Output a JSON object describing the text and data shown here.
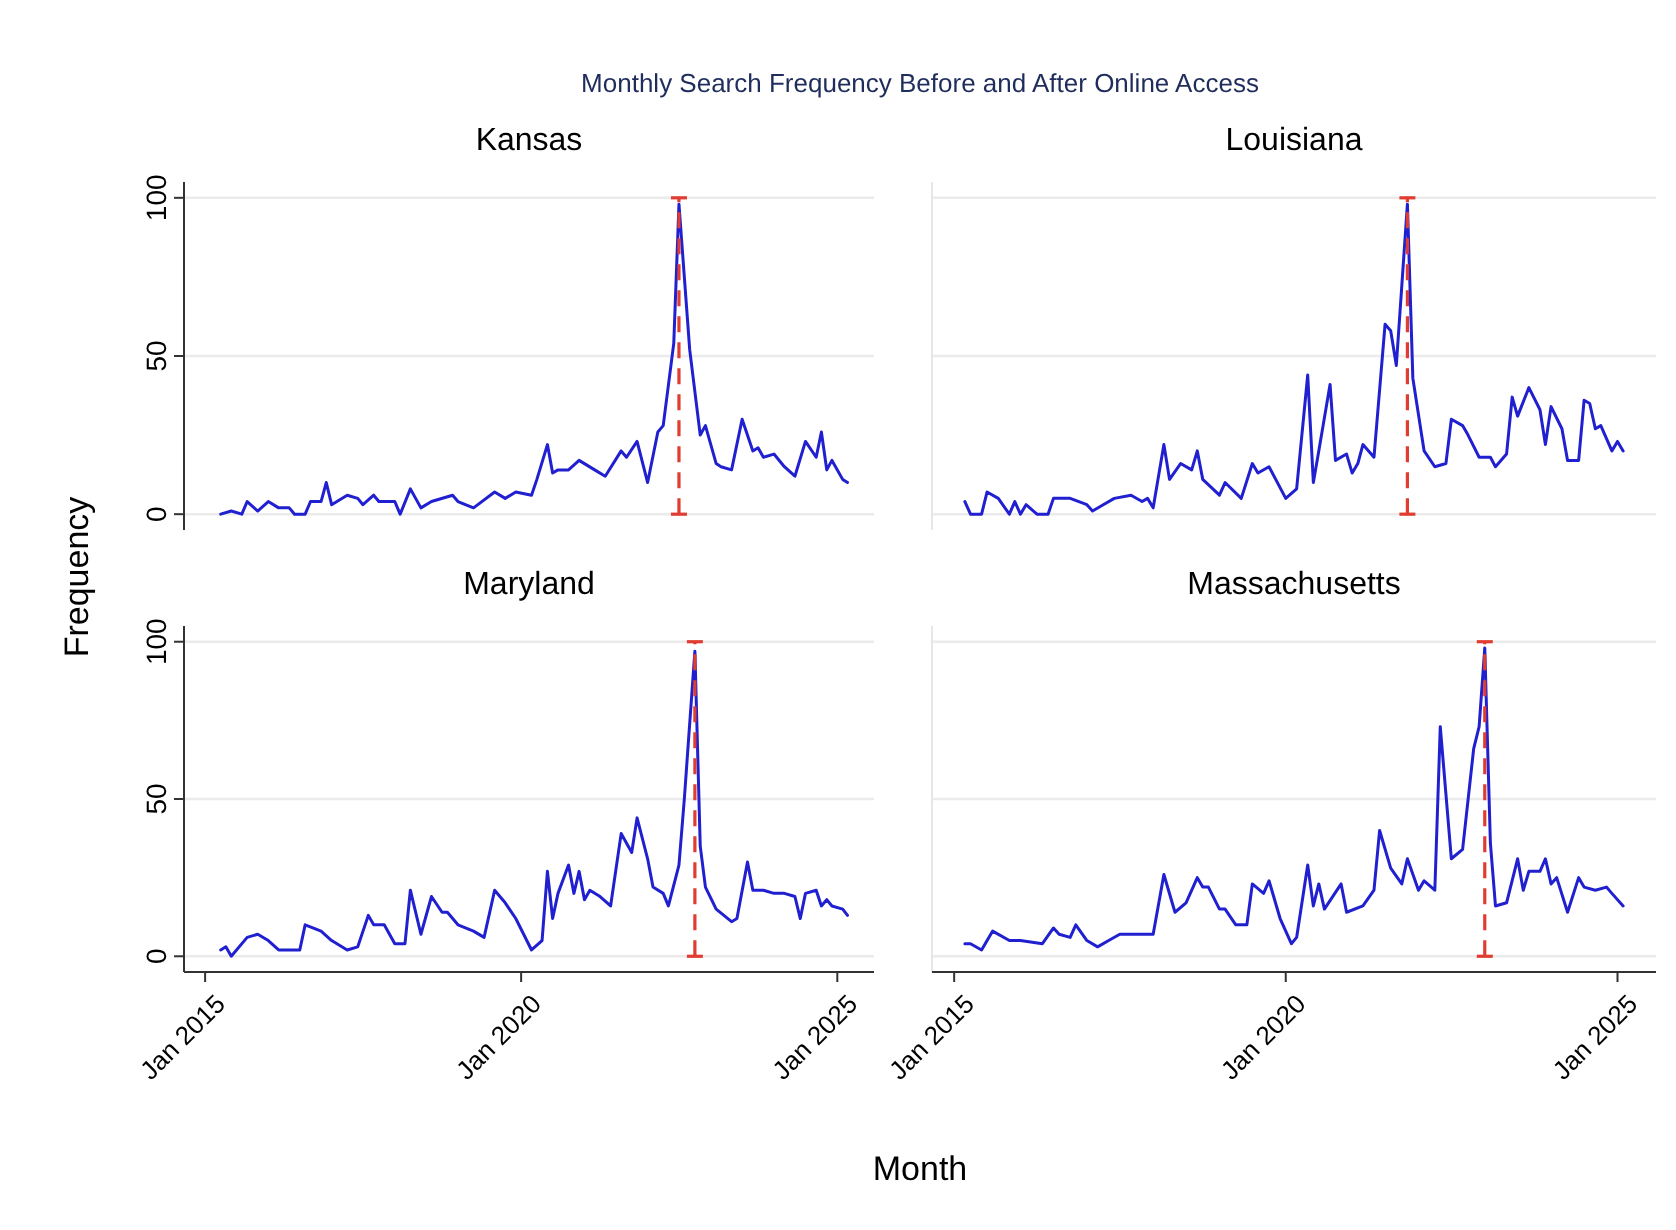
{
  "chart_data": [
    {
      "type": "line",
      "title": "Kansas",
      "ylabel": "Frequency",
      "annotations": [
        "Monthly Search Frequency Before and After Online Access"
      ],
      "xlim": [
        "2014-09",
        "2025-08"
      ],
      "ylim": [
        -5,
        105
      ],
      "yticks": [
        0,
        50,
        100
      ],
      "grid": "y",
      "tick_labels": "y",
      "line_style": "solid",
      "series": [
        {
          "color": "#2020d0",
          "x": [
            "2015-04",
            "2015-06",
            "2015-08",
            "2015-09",
            "2015-11",
            "2016-01",
            "2016-03",
            "2016-05",
            "2016-06",
            "2016-08",
            "2016-09",
            "2016-11",
            "2016-12",
            "2017-01",
            "2017-04",
            "2017-06",
            "2017-07",
            "2017-09",
            "2017-10",
            "2018-01",
            "2018-02",
            "2018-04",
            "2018-06",
            "2018-08",
            "2018-12",
            "2019-01",
            "2019-04",
            "2019-08",
            "2019-10",
            "2019-12",
            "2020-03",
            "2020-04",
            "2020-06",
            "2020-07",
            "2020-08",
            "2020-10",
            "2020-12",
            "2021-03",
            "2021-05",
            "2021-08",
            "2021-09",
            "2021-11",
            "2022-01",
            "2022-03",
            "2022-04",
            "2022-06",
            "2022-07",
            "2022-09",
            "2022-11",
            "2022-12",
            "2023-02",
            "2023-03",
            "2023-05",
            "2023-07",
            "2023-09",
            "2023-10",
            "2023-11",
            "2024-01",
            "2024-03",
            "2024-05",
            "2024-07",
            "2024-09",
            "2024-10",
            "2024-11",
            "2024-12",
            "2025-02",
            "2025-03"
          ],
          "values": [
            0,
            1,
            0,
            4,
            1,
            4,
            2,
            2,
            0,
            0,
            4,
            4,
            10,
            3,
            6,
            5,
            3,
            6,
            4,
            4,
            0,
            8,
            2,
            4,
            6,
            4,
            2,
            7,
            5,
            7,
            6,
            11,
            22,
            13,
            14,
            14,
            17,
            14,
            12,
            20,
            18,
            23,
            10,
            26,
            28,
            54,
            98,
            52,
            25,
            28,
            16,
            15,
            14,
            30,
            20,
            21,
            18,
            19,
            15,
            12,
            23,
            18,
            26,
            14,
            17,
            11,
            10
          ]
        }
      ],
      "ref_lines": [
        {
          "axis": "x",
          "value": "2022-07",
          "color": "#e03c31",
          "line_style": "dashed"
        }
      ]
    },
    {
      "type": "line",
      "title": "Louisiana",
      "xlim": [
        "2014-09",
        "2025-08"
      ],
      "ylim": [
        -5,
        105
      ],
      "yticks": [
        0,
        50,
        100
      ],
      "grid": "y",
      "tick_labels": false,
      "line_style": "solid",
      "series": [
        {
          "color": "#2020d0",
          "x": [
            "2015-03",
            "2015-04",
            "2015-06",
            "2015-07",
            "2015-09",
            "2015-11",
            "2015-12",
            "2016-01",
            "2016-02",
            "2016-04",
            "2016-06",
            "2016-07",
            "2016-10",
            "2017-01",
            "2017-02",
            "2017-04",
            "2017-06",
            "2017-09",
            "2017-11",
            "2017-12",
            "2018-01",
            "2018-03",
            "2018-04",
            "2018-06",
            "2018-08",
            "2018-09",
            "2018-10",
            "2019-01",
            "2019-02",
            "2019-05",
            "2019-07",
            "2019-08",
            "2019-10",
            "2020-01",
            "2020-03",
            "2020-05",
            "2020-06",
            "2020-07",
            "2020-09",
            "2020-10",
            "2020-12",
            "2021-01",
            "2021-02",
            "2021-03",
            "2021-05",
            "2021-07",
            "2021-08",
            "2021-09",
            "2021-11",
            "2021-12",
            "2022-02",
            "2022-04",
            "2022-06",
            "2022-07",
            "2022-09",
            "2022-10",
            "2022-12",
            "2023-02",
            "2023-03",
            "2023-05",
            "2023-06",
            "2023-07",
            "2023-09",
            "2023-11",
            "2023-12",
            "2024-01",
            "2024-03",
            "2024-04",
            "2024-06",
            "2024-07",
            "2024-08",
            "2024-09",
            "2024-10",
            "2024-12",
            "2025-01",
            "2025-02"
          ],
          "values": [
            4,
            0,
            0,
            7,
            5,
            0,
            4,
            0,
            3,
            0,
            0,
            5,
            5,
            3,
            1,
            3,
            5,
            6,
            4,
            5,
            2,
            22,
            11,
            16,
            14,
            20,
            11,
            6,
            10,
            5,
            16,
            13,
            15,
            5,
            8,
            44,
            10,
            20,
            41,
            17,
            19,
            13,
            16,
            22,
            18,
            60,
            58,
            47,
            98,
            43,
            20,
            15,
            16,
            30,
            28,
            25,
            18,
            18,
            15,
            19,
            37,
            31,
            40,
            33,
            22,
            34,
            27,
            17,
            17,
            36,
            35,
            27,
            28,
            20,
            23,
            20
          ]
        }
      ],
      "ref_lines": [
        {
          "axis": "x",
          "value": "2021-11",
          "color": "#e03c31",
          "line_style": "dashed"
        }
      ]
    },
    {
      "type": "line",
      "title": "Maryland",
      "xlabel": "Month",
      "xlim": [
        "2014-09",
        "2025-08"
      ],
      "xticks": [
        {
          "value": "2015-01",
          "label": "Jan 2015"
        },
        {
          "value": "2020-01",
          "label": "Jan 2020"
        },
        {
          "value": "2025-01",
          "label": "Jan 2025"
        }
      ],
      "ylim": [
        -5,
        105
      ],
      "yticks": [
        0,
        50,
        100
      ],
      "grid": "y",
      "line_style": "solid",
      "series": [
        {
          "color": "#2020d0",
          "x": [
            "2015-04",
            "2015-05",
            "2015-06",
            "2015-09",
            "2015-11",
            "2016-01",
            "2016-03",
            "2016-07",
            "2016-08",
            "2016-11",
            "2017-01",
            "2017-04",
            "2017-06",
            "2017-08",
            "2017-09",
            "2017-11",
            "2018-01",
            "2018-03",
            "2018-04",
            "2018-06",
            "2018-08",
            "2018-10",
            "2018-11",
            "2019-01",
            "2019-04",
            "2019-06",
            "2019-08",
            "2019-10",
            "2019-12",
            "2020-03",
            "2020-05",
            "2020-06",
            "2020-07",
            "2020-08",
            "2020-10",
            "2020-11",
            "2020-12",
            "2021-01",
            "2021-02",
            "2021-04",
            "2021-06",
            "2021-08",
            "2021-10",
            "2021-11",
            "2022-01",
            "2022-02",
            "2022-04",
            "2022-05",
            "2022-07",
            "2022-08",
            "2022-10",
            "2022-11",
            "2022-12",
            "2023-02",
            "2023-05",
            "2023-06",
            "2023-08",
            "2023-09",
            "2023-10",
            "2023-11",
            "2024-01",
            "2024-03",
            "2024-05",
            "2024-06",
            "2024-07",
            "2024-09",
            "2024-10",
            "2024-11",
            "2024-12",
            "2025-02",
            "2025-03"
          ],
          "values": [
            2,
            3,
            0,
            6,
            7,
            5,
            2,
            2,
            10,
            8,
            5,
            2,
            3,
            13,
            10,
            10,
            4,
            4,
            21,
            7,
            19,
            14,
            14,
            10,
            8,
            6,
            21,
            17,
            12,
            2,
            5,
            27,
            12,
            20,
            29,
            20,
            27,
            18,
            21,
            19,
            16,
            39,
            33,
            44,
            31,
            22,
            20,
            16,
            29,
            50,
            97,
            35,
            22,
            15,
            11,
            12,
            30,
            21,
            21,
            21,
            20,
            20,
            19,
            12,
            20,
            21,
            16,
            18,
            16,
            15,
            13
          ]
        }
      ],
      "ref_lines": [
        {
          "axis": "x",
          "value": "2022-10",
          "color": "#e03c31",
          "line_style": "dashed"
        }
      ]
    },
    {
      "type": "line",
      "title": "Massachusetts",
      "xlim": [
        "2014-09",
        "2025-08"
      ],
      "xticks": [
        {
          "value": "2015-01",
          "label": "Jan 2015"
        },
        {
          "value": "2020-01",
          "label": "Jan 2020"
        },
        {
          "value": "2025-01",
          "label": "Jan 2025"
        }
      ],
      "ylim": [
        -5,
        105
      ],
      "yticks": [
        0,
        50,
        100
      ],
      "grid": "y",
      "tick_labels": "x",
      "line_style": "solid",
      "series": [
        {
          "color": "#2020d0",
          "x": [
            "2015-03",
            "2015-04",
            "2015-06",
            "2015-08",
            "2015-11",
            "2016-01",
            "2016-05",
            "2016-07",
            "2016-08",
            "2016-10",
            "2016-11",
            "2017-01",
            "2017-03",
            "2017-05",
            "2017-07",
            "2017-09",
            "2018-01",
            "2018-03",
            "2018-05",
            "2018-07",
            "2018-09",
            "2018-10",
            "2018-11",
            "2019-01",
            "2019-02",
            "2019-04",
            "2019-06",
            "2019-07",
            "2019-09",
            "2019-10",
            "2019-12",
            "2020-02",
            "2020-03",
            "2020-05",
            "2020-06",
            "2020-07",
            "2020-08",
            "2020-11",
            "2020-12",
            "2021-03",
            "2021-05",
            "2021-06",
            "2021-08",
            "2021-10",
            "2021-11",
            "2022-01",
            "2022-02",
            "2022-04",
            "2022-05",
            "2022-07",
            "2022-09",
            "2022-11",
            "2022-12",
            "2023-01",
            "2023-02",
            "2023-03",
            "2023-05",
            "2023-07",
            "2023-08",
            "2023-09",
            "2023-11",
            "2023-12",
            "2024-01",
            "2024-02",
            "2024-04",
            "2024-06",
            "2024-07",
            "2024-09",
            "2024-11",
            "2024-12",
            "2025-02"
          ],
          "values": [
            4,
            4,
            2,
            8,
            5,
            5,
            4,
            9,
            7,
            6,
            10,
            5,
            3,
            5,
            7,
            7,
            7,
            26,
            14,
            17,
            25,
            22,
            22,
            15,
            15,
            10,
            10,
            23,
            20,
            24,
            12,
            4,
            6,
            29,
            16,
            23,
            15,
            23,
            14,
            16,
            21,
            40,
            28,
            23,
            31,
            21,
            24,
            21,
            73,
            31,
            34,
            66,
            73,
            98,
            36,
            16,
            17,
            31,
            21,
            27,
            27,
            31,
            23,
            25,
            14,
            25,
            22,
            21,
            22,
            20,
            16
          ]
        }
      ],
      "ref_lines": [
        {
          "axis": "x",
          "value": "2023-01",
          "color": "#e03c31",
          "line_style": "dashed"
        }
      ]
    }
  ]
}
